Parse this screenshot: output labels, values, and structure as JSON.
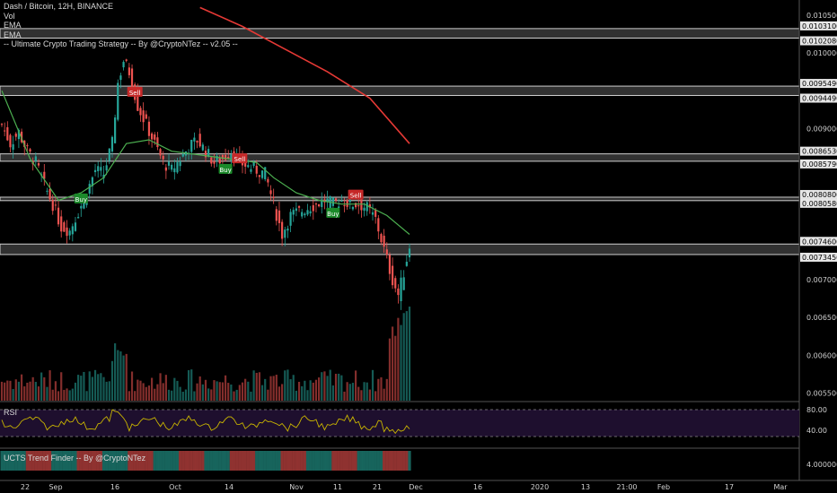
{
  "legend": {
    "title": "Dash / Bitcoin, 12H, BINANCE",
    "lines": [
      "Vol",
      "EMA",
      "EMA",
      "-- Ultimate Crypto Trading Strategy -- By @CryptoNTez -- v2.05 --"
    ]
  },
  "rsi_label": "RSI",
  "trend_label": "UCTS Trend Finder -- By @CryptoNTez",
  "price_axis": {
    "ticks": [
      "0.01050000",
      "0.01000000",
      "0.00900000",
      "0.00700000",
      "0.00650000",
      "0.00600000",
      "0.00550000"
    ],
    "highlighted": [
      "0.01031000",
      "0.01020800",
      "0.00954900",
      "0.00944900",
      "0.00865300",
      "0.00857900",
      "0.00808000",
      "0.00805800",
      "0.00746000",
      "0.00734500"
    ]
  },
  "rsi_axis": [
    "80.00",
    "40.00"
  ],
  "trend_axis": [
    "4.00000000"
  ],
  "time_axis": [
    "22",
    "Sep",
    "16",
    "Oct",
    "14",
    "Nov",
    "11",
    "21",
    "Dec",
    "16",
    "2020",
    "13",
    "21:00",
    "Feb",
    "17",
    "Mar"
  ],
  "colors": {
    "up": "#26a69a",
    "down": "#ef5350",
    "ema_fast": "#4caf50",
    "ema_slow": "#e53935",
    "rsi": "#c8b400",
    "rsi_bg": "#1e0f2e",
    "buy": "#1b8a2a",
    "sell": "#c62828"
  },
  "chart_data": {
    "type": "candlestick",
    "title": "Dash / Bitcoin, 12H, BINANCE",
    "ylim": [
      0.0054,
      0.0107
    ],
    "support_resistance_zones": [
      [
        0.010208,
        0.01031
      ],
      [
        0.009449,
        0.009549
      ],
      [
        0.008579,
        0.008653
      ],
      [
        0.008058,
        0.00808
      ],
      [
        0.007345,
        0.00746
      ]
    ],
    "close_path": [
      [
        0,
        0.00905
      ],
      [
        3,
        0.0088
      ],
      [
        6,
        0.00895
      ],
      [
        9,
        0.0087
      ],
      [
        12,
        0.00855
      ],
      [
        15,
        0.00825
      ],
      [
        18,
        0.008
      ],
      [
        21,
        0.0077
      ],
      [
        24,
        0.00765
      ],
      [
        27,
        0.0079
      ],
      [
        30,
        0.00815
      ],
      [
        33,
        0.00845
      ],
      [
        36,
        0.0084
      ],
      [
        39,
        0.0088
      ],
      [
        41,
        0.0096
      ],
      [
        43,
        0.0099
      ],
      [
        45,
        0.00975
      ],
      [
        48,
        0.0093
      ],
      [
        51,
        0.00905
      ],
      [
        54,
        0.0088
      ],
      [
        57,
        0.00855
      ],
      [
        60,
        0.00845
      ],
      [
        63,
        0.0086
      ],
      [
        66,
        0.00875
      ],
      [
        69,
        0.00885
      ],
      [
        72,
        0.0087
      ],
      [
        75,
        0.00855
      ],
      [
        78,
        0.0086
      ],
      [
        81,
        0.0087
      ],
      [
        84,
        0.00855
      ],
      [
        87,
        0.0085
      ],
      [
        90,
        0.00845
      ],
      [
        93,
        0.0084
      ],
      [
        96,
        0.008
      ],
      [
        99,
        0.0076
      ],
      [
        102,
        0.00785
      ],
      [
        105,
        0.0079
      ],
      [
        108,
        0.00795
      ],
      [
        111,
        0.008
      ],
      [
        114,
        0.00805
      ],
      [
        117,
        0.008
      ],
      [
        120,
        0.00805
      ],
      [
        123,
        0.008
      ],
      [
        126,
        0.008
      ],
      [
        129,
        0.00795
      ],
      [
        132,
        0.0078
      ],
      [
        135,
        0.0074
      ],
      [
        138,
        0.007
      ],
      [
        140,
        0.0068
      ],
      [
        142,
        0.0071
      ],
      [
        144,
        0.00745
      ]
    ],
    "ema_fast": [
      [
        0,
        0.0095
      ],
      [
        10,
        0.0086
      ],
      [
        20,
        0.00805
      ],
      [
        28,
        0.00815
      ],
      [
        36,
        0.00835
      ],
      [
        44,
        0.0088
      ],
      [
        52,
        0.00885
      ],
      [
        60,
        0.0087
      ],
      [
        70,
        0.00865
      ],
      [
        80,
        0.0086
      ],
      [
        90,
        0.00855
      ],
      [
        96,
        0.00835
      ],
      [
        104,
        0.00815
      ],
      [
        112,
        0.00805
      ],
      [
        120,
        0.008
      ],
      [
        128,
        0.008
      ],
      [
        136,
        0.00785
      ],
      [
        144,
        0.0076
      ]
    ],
    "ema_slow": [
      [
        70,
        0.0106
      ],
      [
        85,
        0.01035
      ],
      [
        100,
        0.01005
      ],
      [
        115,
        0.00975
      ],
      [
        130,
        0.0094
      ],
      [
        144,
        0.0088
      ]
    ],
    "signals": [
      {
        "label": "Sell",
        "x": 47,
        "price": 0.00948
      },
      {
        "label": "Buy",
        "x": 28,
        "price": 0.00807
      },
      {
        "label": "Buy",
        "x": 79,
        "price": 0.00846
      },
      {
        "label": "Sell",
        "x": 84,
        "price": 0.0086
      },
      {
        "label": "Buy",
        "x": 117,
        "price": 0.00788
      },
      {
        "label": "Sell",
        "x": 125,
        "price": 0.00812
      }
    ],
    "volume_hint": "spikes near x=41, 120 and end",
    "rsi_levels": [
      80,
      40
    ]
  }
}
